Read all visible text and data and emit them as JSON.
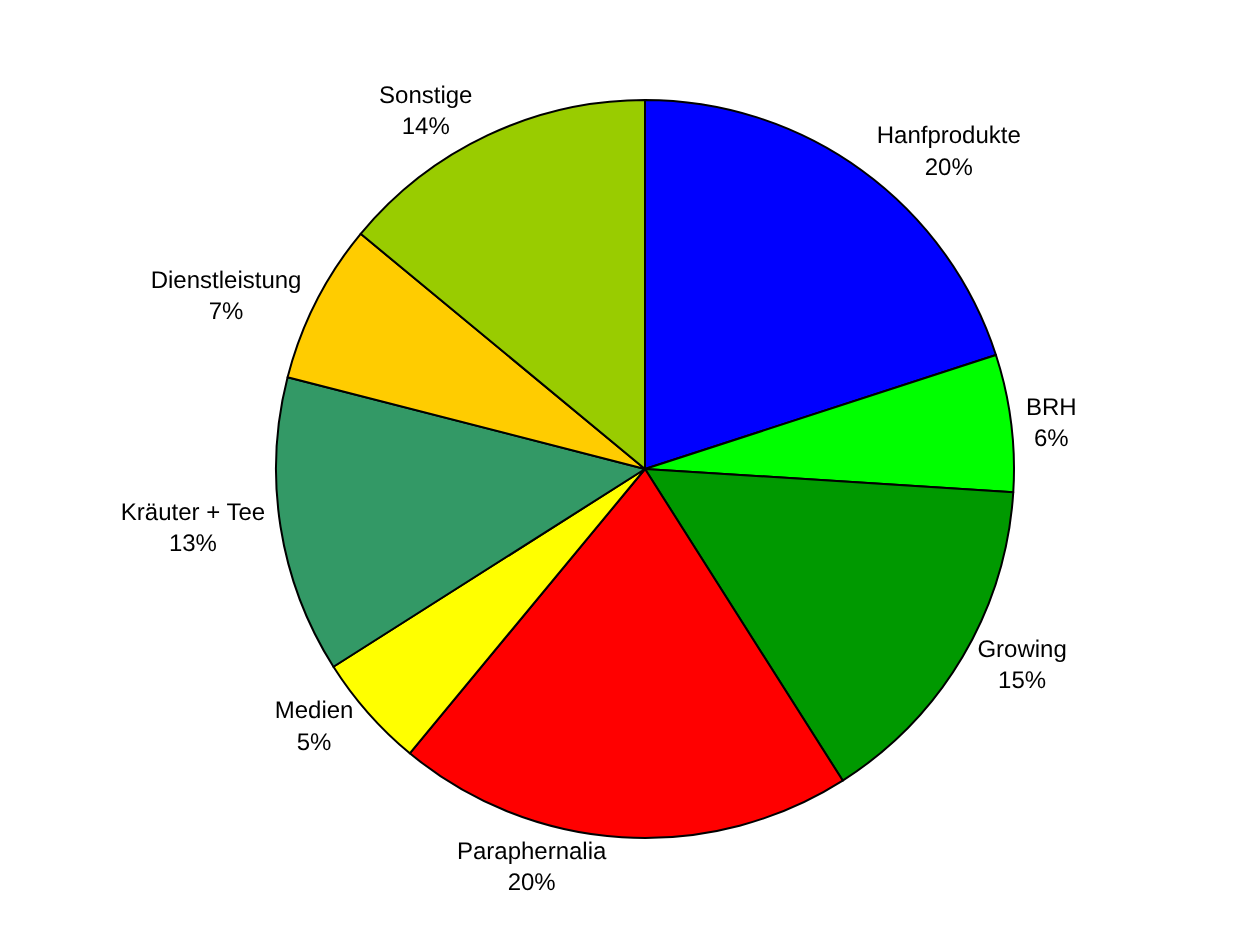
{
  "chart_data": {
    "type": "pie",
    "categories": [
      "Hanfprodukte",
      "BRH",
      "Growing",
      "Paraphernalia",
      "Medien",
      "Kräuter + Tee",
      "Dienstleistung",
      "Sonstige"
    ],
    "values": [
      20,
      6,
      15,
      20,
      5,
      13,
      7,
      14
    ],
    "value_labels": [
      "20%",
      "6%",
      "15%",
      "20%",
      "5%",
      "13%",
      "7%",
      "14%"
    ],
    "colors": [
      "#0000ff",
      "#00ff00",
      "#009900",
      "#ff0000",
      "#ffff00",
      "#339966",
      "#ffcc00",
      "#99cc00"
    ],
    "legend": false
  }
}
